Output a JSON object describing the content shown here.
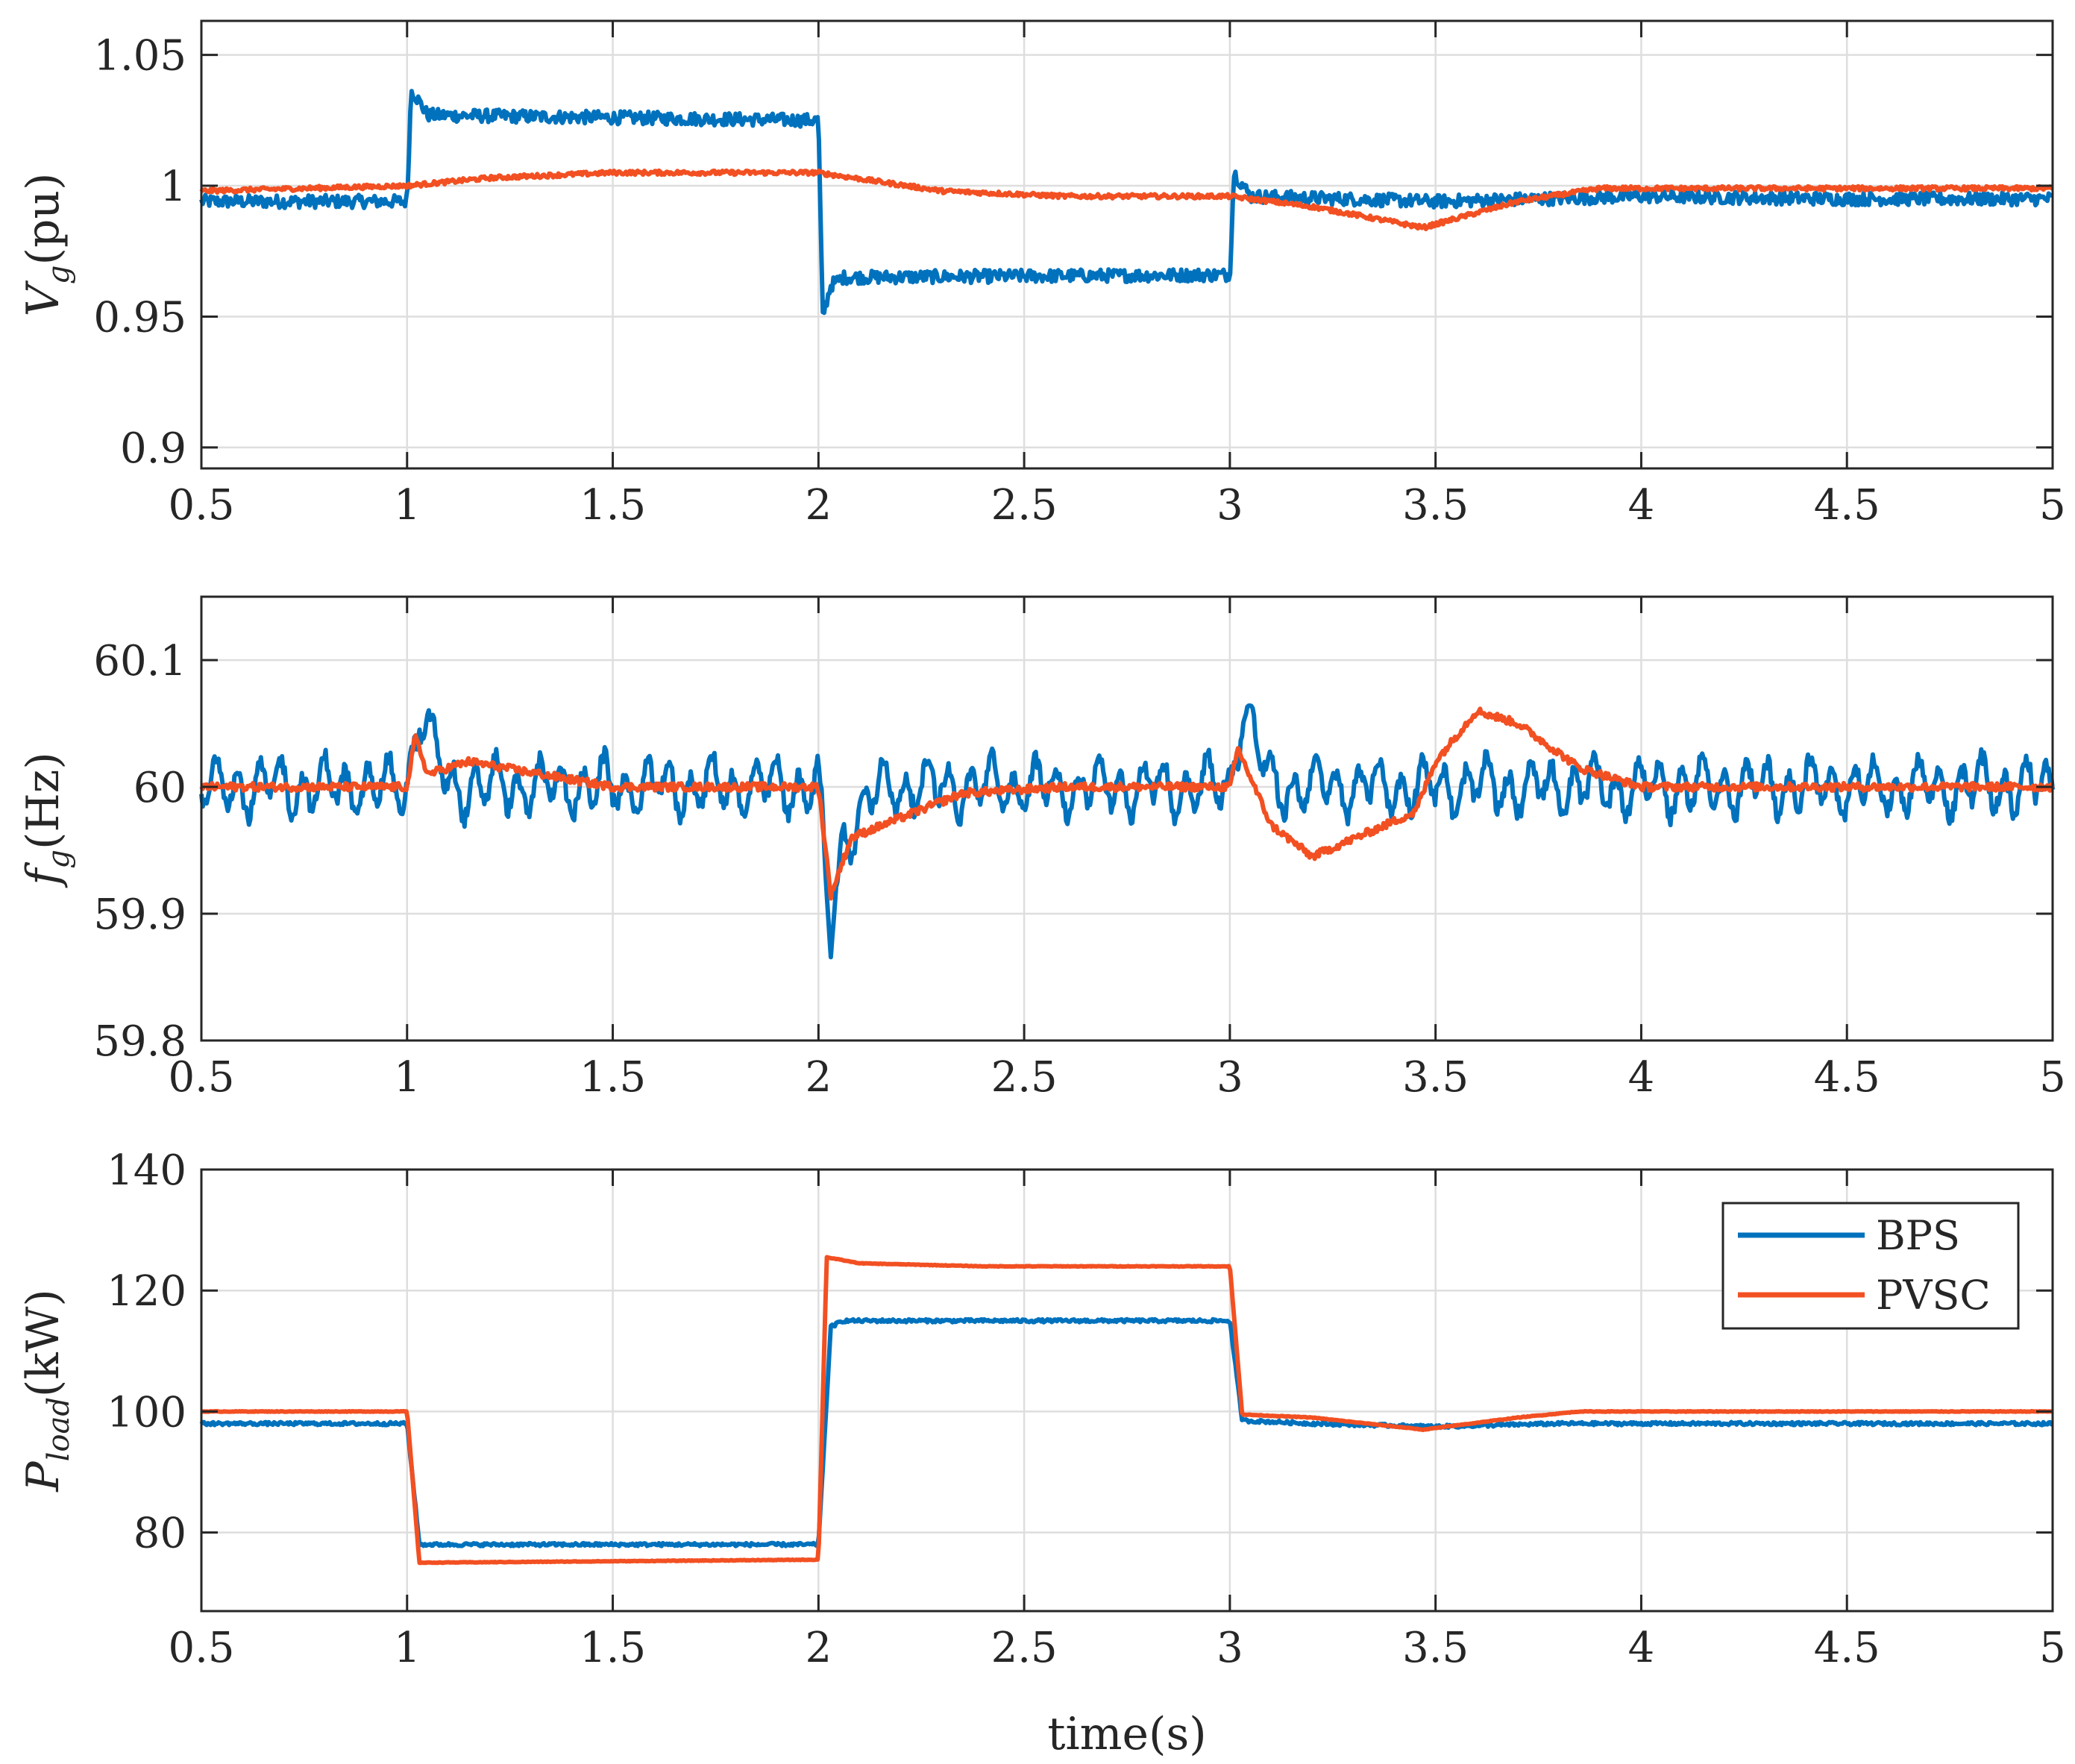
{
  "colors": {
    "BPS": "#0072bd",
    "PVSC": "#f25022",
    "grid": "#dedede",
    "axis": "#262626"
  },
  "chart_data": [
    {
      "type": "line",
      "id": "voltage",
      "ylabel_main": "V",
      "ylabel_sub": "g",
      "ylabel_unit": "(pu)",
      "xlabel": "",
      "xlim": [
        0.5,
        5
      ],
      "ylim": [
        0.892,
        1.063
      ],
      "xticks": [
        0.5,
        1,
        1.5,
        2,
        2.5,
        3,
        3.5,
        4,
        4.5,
        5
      ],
      "xtick_labels": [
        "0.5",
        "1",
        "1.5",
        "2",
        "2.5",
        "3",
        "3.5",
        "4",
        "4.5",
        "5"
      ],
      "yticks": [
        0.9,
        0.95,
        1,
        1.05
      ],
      "ytick_labels": [
        "0.9",
        "0.95",
        "1",
        "1.05"
      ],
      "grid": true,
      "series": [
        {
          "name": "BPS",
          "color_key": "BPS",
          "x": [
            0.5,
            0.99,
            1.0,
            1.01,
            1.05,
            1.99,
            2.0,
            2.01,
            2.03,
            2.06,
            2.99,
            3.0,
            3.01,
            3.05,
            3.5,
            4.0,
            4.5,
            5.0
          ],
          "y": [
            0.994,
            0.994,
            0.994,
            1.037,
            1.027,
            1.025,
            1.025,
            0.95,
            0.962,
            0.965,
            0.966,
            0.966,
            1.005,
            0.996,
            0.994,
            0.996,
            0.995,
            0.995
          ],
          "noise": 0.0025
        },
        {
          "name": "PVSC",
          "color_key": "PVSC",
          "x": [
            0.5,
            1.0,
            1.2,
            1.5,
            2.0,
            2.3,
            2.6,
            3.0,
            3.2,
            3.47,
            3.7,
            3.9,
            4.3,
            5.0
          ],
          "y": [
            0.998,
            1.0,
            1.003,
            1.005,
            1.005,
            0.998,
            0.996,
            0.996,
            0.992,
            0.984,
            0.994,
            0.999,
            0.999,
            0.999
          ],
          "noise": 0.0008
        }
      ]
    },
    {
      "type": "line",
      "id": "frequency",
      "ylabel_main": "f",
      "ylabel_sub": "g",
      "ylabel_unit": "(Hz)",
      "xlabel": "",
      "xlim": [
        0.5,
        5
      ],
      "ylim": [
        59.8,
        60.15
      ],
      "xticks": [
        0.5,
        1,
        1.5,
        2,
        2.5,
        3,
        3.5,
        4,
        4.5,
        5
      ],
      "xtick_labels": [
        "0.5",
        "1",
        "1.5",
        "2",
        "2.5",
        "3",
        "3.5",
        "4",
        "4.5",
        "5"
      ],
      "yticks": [
        59.8,
        59.9,
        60,
        60.1
      ],
      "ytick_labels": [
        "59.8",
        "59.9",
        "60",
        "60.1"
      ],
      "grid": true,
      "series": [
        {
          "name": "BPS",
          "color_key": "BPS",
          "x": [
            0.5,
            1.0,
            1.03,
            1.1,
            2.0,
            2.03,
            2.06,
            2.15,
            3.0,
            3.03,
            3.1,
            5.0
          ],
          "y": [
            60.0,
            60.0,
            60.06,
            60.0,
            60.0,
            59.88,
            59.96,
            60.0,
            60.0,
            60.065,
            60.0,
            60.0
          ],
          "noise": 0.022
        },
        {
          "name": "PVSC",
          "color_key": "PVSC",
          "x": [
            0.5,
            1.0,
            1.02,
            1.05,
            1.15,
            1.5,
            2.0,
            2.03,
            2.08,
            2.35,
            2.6,
            3.0,
            3.02,
            3.1,
            3.2,
            3.45,
            3.5,
            3.6,
            3.7,
            3.85,
            4.0,
            5.0
          ],
          "y": [
            60.0,
            60.0,
            60.04,
            60.01,
            60.02,
            60.0,
            60.0,
            59.915,
            59.96,
            59.995,
            60.0,
            60.0,
            60.03,
            59.97,
            59.945,
            59.98,
            60.02,
            60.06,
            60.05,
            60.015,
            60.0,
            60.0
          ],
          "noise": 0.003
        }
      ]
    },
    {
      "type": "line",
      "id": "load",
      "ylabel_main": "P",
      "ylabel_sub": "load",
      "ylabel_unit": "(kW)",
      "xlabel": "time(s)",
      "xlim": [
        0.5,
        5
      ],
      "ylim": [
        67,
        140
      ],
      "xticks": [
        0.5,
        1,
        1.5,
        2,
        2.5,
        3,
        3.5,
        4,
        4.5,
        5
      ],
      "xtick_labels": [
        "0.5",
        "1",
        "1.5",
        "2",
        "2.5",
        "3",
        "3.5",
        "4",
        "4.5",
        "5"
      ],
      "yticks": [
        80,
        100,
        120,
        140
      ],
      "ytick_labels": [
        "80",
        "100",
        "120",
        "140"
      ],
      "grid": true,
      "legend": {
        "position": "top-right",
        "entries": [
          "BPS",
          "PVSC"
        ]
      },
      "series": [
        {
          "name": "BPS",
          "color_key": "BPS",
          "x": [
            0.5,
            1.0,
            1.03,
            2.0,
            2.03,
            2.06,
            3.0,
            3.03,
            3.2,
            3.5,
            3.8,
            4.0,
            5.0
          ],
          "y": [
            98,
            98,
            78,
            78,
            114,
            115,
            115,
            98.5,
            98,
            97.5,
            98,
            98,
            98
          ],
          "noise": 0.25
        },
        {
          "name": "PVSC",
          "color_key": "PVSC",
          "x": [
            0.5,
            1.0,
            1.03,
            2.0,
            2.02,
            2.1,
            2.4,
            3.0,
            3.03,
            3.2,
            3.47,
            3.7,
            3.85,
            4.0,
            5.0
          ],
          "y": [
            100,
            100,
            75,
            75.5,
            125.5,
            124.5,
            124,
            124,
            99.5,
            99,
            97,
            99,
            100,
            100,
            100
          ],
          "noise": 0.05
        }
      ]
    }
  ]
}
